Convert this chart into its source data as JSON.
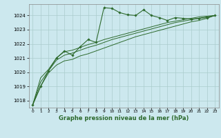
{
  "title": "Graphe pression niveau de la mer (hPa)",
  "bg_color": "#cce8ee",
  "grid_color": "#aacccc",
  "line_color": "#2d6a2d",
  "xlim": [
    -0.5,
    23.5
  ],
  "ylim": [
    1017.5,
    1024.8
  ],
  "yticks": [
    1018,
    1019,
    1020,
    1021,
    1022,
    1023,
    1024
  ],
  "xticks": [
    0,
    1,
    2,
    3,
    4,
    5,
    6,
    7,
    8,
    9,
    10,
    11,
    12,
    13,
    14,
    15,
    16,
    17,
    18,
    19,
    20,
    21,
    22,
    23
  ],
  "series1": [
    1017.7,
    1019.0,
    1020.1,
    1021.0,
    1021.5,
    1021.2,
    1021.8,
    1022.3,
    1022.1,
    1024.55,
    1024.5,
    1024.2,
    1024.05,
    1024.0,
    1024.4,
    1024.0,
    1023.85,
    1023.65,
    1023.85,
    1023.8,
    1023.75,
    1023.8,
    1023.85,
    1024.0
  ],
  "series2": [
    1017.7,
    1019.0,
    1019.95,
    1020.5,
    1020.8,
    1020.9,
    1021.15,
    1021.3,
    1021.5,
    1021.7,
    1021.9,
    1022.1,
    1022.3,
    1022.5,
    1022.65,
    1022.8,
    1022.95,
    1023.1,
    1023.25,
    1023.4,
    1023.55,
    1023.65,
    1023.8,
    1024.0
  ],
  "series3": [
    1017.7,
    1019.3,
    1020.1,
    1020.85,
    1021.2,
    1021.35,
    1021.55,
    1021.75,
    1021.9,
    1022.1,
    1022.3,
    1022.45,
    1022.6,
    1022.75,
    1022.9,
    1023.05,
    1023.2,
    1023.35,
    1023.5,
    1023.6,
    1023.7,
    1023.8,
    1023.9,
    1024.0
  ],
  "series4": [
    1017.7,
    1019.6,
    1020.2,
    1021.0,
    1021.45,
    1021.55,
    1021.75,
    1021.95,
    1022.1,
    1022.3,
    1022.45,
    1022.6,
    1022.75,
    1022.9,
    1023.05,
    1023.2,
    1023.35,
    1023.5,
    1023.6,
    1023.7,
    1023.8,
    1023.9,
    1023.95,
    1024.0
  ]
}
